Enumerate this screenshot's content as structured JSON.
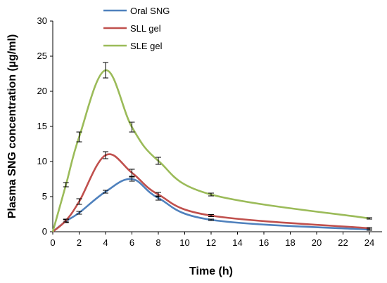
{
  "chart_data": {
    "type": "line",
    "xlabel": "Time (h)",
    "ylabel": "Plasma SNG concentration (µg/ml)",
    "xlim": [
      0,
      24
    ],
    "ylim": [
      0,
      30
    ],
    "xticks": [
      0,
      2,
      4,
      6,
      8,
      10,
      12,
      14,
      16,
      18,
      20,
      22,
      24
    ],
    "yticks": [
      0,
      5,
      10,
      15,
      20,
      25,
      30
    ],
    "grid": false,
    "legend_position": "top-center",
    "series": [
      {
        "name": "Oral SNG",
        "color": "#4F81BD",
        "x": [
          0,
          1,
          2,
          4,
          6,
          8,
          12,
          24
        ],
        "y": [
          0,
          1.5,
          2.7,
          5.7,
          7.5,
          4.8,
          1.7,
          0.3
        ],
        "error": [
          0,
          0.2,
          0.2,
          0.2,
          0.3,
          0.3,
          0.1,
          0.1
        ]
      },
      {
        "name": "SLL gel",
        "color": "#C0504D",
        "x": [
          0,
          1,
          2,
          4,
          6,
          8,
          12,
          24
        ],
        "y": [
          0,
          1.6,
          4.3,
          10.9,
          8.4,
          5.3,
          2.3,
          0.5
        ],
        "error": [
          0,
          0.2,
          0.4,
          0.5,
          0.5,
          0.3,
          0.15,
          0.1
        ]
      },
      {
        "name": "SLE gel",
        "color": "#9BBB59",
        "x": [
          0,
          1,
          2,
          4,
          6,
          8,
          12,
          24
        ],
        "y": [
          0,
          6.7,
          13.5,
          23.0,
          14.9,
          10.1,
          5.3,
          1.9
        ],
        "error": [
          0,
          0.3,
          0.7,
          1.1,
          0.7,
          0.5,
          0.2,
          0.1
        ]
      }
    ]
  }
}
